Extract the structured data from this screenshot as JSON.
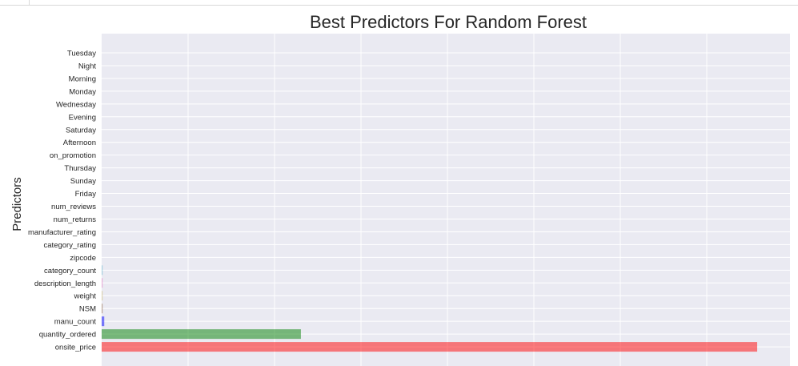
{
  "chart_data": {
    "type": "bar",
    "orientation": "horizontal",
    "title": "Best Predictors For Random Forest",
    "xlabel": "",
    "ylabel": "Predictors",
    "xlim": [
      0,
      0.38
    ],
    "grid": true,
    "categories": [
      "Tuesday",
      "Night",
      "Morning",
      "Monday",
      "Wednesday",
      "Evening",
      "Saturday",
      "Afternoon",
      "on_promotion",
      "Thursday",
      "Sunday",
      "Friday",
      "num_reviews",
      "num_returns",
      "manufacturer_rating",
      "category_rating",
      "zipcode",
      "category_count",
      "description_length",
      "weight",
      "NSM",
      "manu_count",
      "quantity_ordered",
      "onsite_price"
    ],
    "values": [
      0,
      0,
      0,
      0,
      0,
      0,
      0,
      0,
      0,
      0,
      0,
      0,
      0,
      0,
      0,
      0,
      0,
      0.0005,
      0.0005,
      0.0005,
      0.0005,
      0.0015,
      0.1155,
      0.38
    ],
    "colors": [
      "#4c72b0",
      "#55a868",
      "#c44e52",
      "#8172b2",
      "#ccb974",
      "#64b5cd",
      "#4c72b0",
      "#55a868",
      "#c44e52",
      "#8172b2",
      "#ccb974",
      "#64b5cd",
      "#4c72b0",
      "#55a868",
      "#c44e52",
      "#8172b2",
      "#ccb974",
      "#64b5cd",
      "#e377c2",
      "#ccb974",
      "#8c613c",
      "#0000ff",
      "#008000",
      "#ff0000"
    ]
  }
}
